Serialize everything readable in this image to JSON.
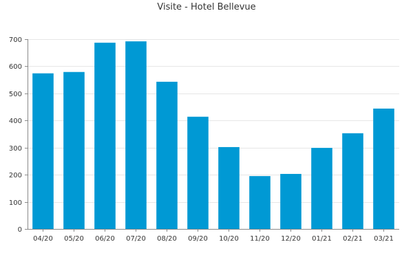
{
  "chart_data": {
    "type": "bar",
    "title": "Visite - Hotel Bellevue",
    "xlabel": "",
    "ylabel": "",
    "categories": [
      "04/20",
      "05/20",
      "06/20",
      "07/20",
      "08/20",
      "09/20",
      "10/20",
      "11/20",
      "12/20",
      "01/21",
      "02/21",
      "03/21"
    ],
    "values": [
      574,
      579,
      687,
      692,
      543,
      414,
      302,
      195,
      203,
      299,
      353,
      444
    ],
    "ylim": [
      0,
      700
    ],
    "yticks": [
      0,
      100,
      200,
      300,
      400,
      500,
      600,
      700
    ],
    "grid": true,
    "legend": "none",
    "bar_color": "#0099d4",
    "grid_color": "#e6e6e6",
    "axis_color": "#888888"
  }
}
